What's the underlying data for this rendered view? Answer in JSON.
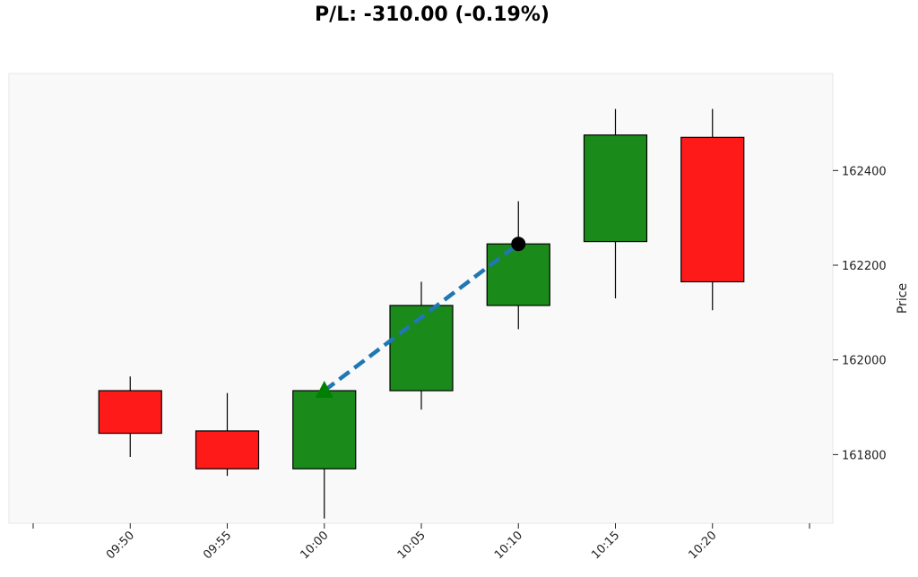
{
  "chart_data": {
    "type": "candlestick",
    "title": "P/L: -310.00 (-0.19%)",
    "ylabel": "Price",
    "xlabel": "",
    "y_ticks": [
      161800,
      162000,
      162200,
      162400
    ],
    "x_ticks": [
      "09:50",
      "09:55",
      "10:00",
      "10:05",
      "10:10",
      "10:15",
      "10:20"
    ],
    "ylim": [
      161655,
      162605
    ],
    "grid": false,
    "plot_background": "#f9f9f9",
    "colors": {
      "up": "#1a8a1a",
      "down": "#ff1a1a",
      "trade_line": "#1f77b4",
      "entry_marker": "#008000",
      "exit_marker": "#000000"
    },
    "candles": [
      {
        "time": "09:50",
        "open": 161935,
        "high": 161965,
        "low": 161795,
        "close": 161845
      },
      {
        "time": "09:55",
        "open": 161850,
        "high": 161930,
        "low": 161755,
        "close": 161770
      },
      {
        "time": "10:00",
        "open": 161770,
        "high": 161935,
        "low": 161665,
        "close": 161935
      },
      {
        "time": "10:05",
        "open": 161935,
        "high": 162165,
        "low": 161895,
        "close": 162115
      },
      {
        "time": "10:10",
        "open": 162115,
        "high": 162335,
        "low": 162065,
        "close": 162245
      },
      {
        "time": "10:15",
        "open": 162250,
        "high": 162530,
        "low": 162130,
        "close": 162475
      },
      {
        "time": "10:20",
        "open": 162470,
        "high": 162530,
        "low": 162105,
        "close": 162165
      }
    ],
    "trade": {
      "entry": {
        "time": "10:00",
        "price": 161935
      },
      "exit": {
        "time": "10:10",
        "price": 162245
      }
    }
  }
}
